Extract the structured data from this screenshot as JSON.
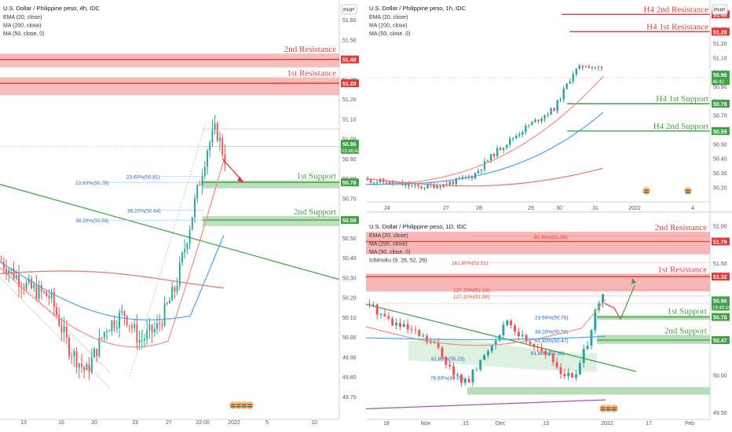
{
  "colors": {
    "resistance": "#e53935",
    "resistance_zone": "#f6a5a5",
    "support": "#43a047",
    "support_zone": "#a5d6a7",
    "up_candle": "#26a69a",
    "down_candle": "#ef5350",
    "ema": "#f28b82",
    "ma200": "#e57373",
    "ma50": "#42a5f5",
    "trendline": "#4caf50",
    "price_tag": "#43a047"
  },
  "chart_data": [
    {
      "id": "h4",
      "type": "candlestick",
      "title": "U.S. Dollar / Philippine peso, 4h, IDC",
      "indicators": [
        "EMA (20, close)",
        "MA (200, close)",
        "MA (50, close, 0)"
      ],
      "currency": "PHP",
      "ylim": [
        49.6,
        51.7
      ],
      "y_ticks": [
        "51.60",
        "51.50",
        "51.40",
        "51.30",
        "51.20",
        "51.10",
        "51.00",
        "50.90",
        "50.80",
        "50.70",
        "50.60",
        "50.50",
        "50.40",
        "50.30",
        "50.20",
        "50.10",
        "50.00",
        "49.90",
        "49.80",
        "49.70"
      ],
      "x_ticks": [
        "13",
        "16",
        "20",
        "23",
        "27",
        "22:00",
        "2022",
        "5",
        "10"
      ],
      "levels": [
        {
          "label": "2nd Resistance",
          "price_tag": "51.40",
          "kind": "resistance",
          "from": 51.36,
          "to": 51.43
        },
        {
          "label": "1st Resistance",
          "price_tag": "51.28",
          "kind": "resistance",
          "from": 51.22,
          "to": 51.31
        },
        {
          "label": "1st Support",
          "price_tag": "50.78",
          "kind": "support",
          "from": 50.75,
          "to": 50.79
        },
        {
          "label": "2nd Support",
          "price_tag": "50.59",
          "kind": "support",
          "from": 50.56,
          "to": 50.61
        }
      ],
      "fib_labels": [
        "23.60%(50.78)",
        "23.60%(50.81)",
        "38.20%(50.64)",
        "38.20%(50.59)"
      ],
      "last_price": "50.96",
      "countdown": "03:46:42"
    },
    {
      "id": "h1",
      "type": "candlestick",
      "title": "U.S. Dollar / Philippine peso, 1h, IDC",
      "indicators": [
        "EMA (20, close)",
        "MA (200, close)",
        "MA (50, close, 0)"
      ],
      "currency": "PHP",
      "ylim": [
        50.12,
        51.5
      ],
      "y_ticks": [
        "51.40",
        "51.30",
        "51.20",
        "51.10",
        "51.00",
        "50.90",
        "50.80",
        "50.70",
        "50.60",
        "50.50",
        "50.40",
        "50.30",
        "50.20"
      ],
      "x_ticks": [
        "24",
        "27",
        "28",
        "29",
        "30",
        "31",
        "2022",
        "4"
      ],
      "levels": [
        {
          "label": "H4 2nd Resistance",
          "price_tag": "51.40",
          "kind": "resistance"
        },
        {
          "label": "H4 1st Resistance",
          "price_tag": "51.28",
          "kind": "resistance"
        },
        {
          "label": "H4 1st Support",
          "price_tag": "50.78",
          "kind": "support"
        },
        {
          "label": "H4 2nd Support",
          "price_tag": "50.59",
          "kind": "support"
        }
      ],
      "last_price": "50.96",
      "countdown": "46:42"
    },
    {
      "id": "d1",
      "type": "candlestick",
      "title": "U.S. Dollar / Philippine peso, 1D, IDC",
      "indicators": [
        "EMA (20, close)",
        "MA (200, close)",
        "MA (50, close, 0)",
        "Ichimoku (9, 26, 52, 26)"
      ],
      "currency": "PHP",
      "ylim": [
        49.45,
        52.1
      ],
      "y_ticks": [
        "52.00",
        "51.50",
        "51.00",
        "50.50",
        "50.00",
        "49.50"
      ],
      "x_ticks": [
        "18",
        "Nov",
        "15",
        "Dec",
        "13",
        "2022",
        "17",
        "Feb"
      ],
      "levels": [
        {
          "label": "2nd Resistance",
          "price_tag": "51.79",
          "kind": "resistance",
          "from": 51.62,
          "to": 51.92
        },
        {
          "label": "1st Resistance",
          "price_tag": "51.32",
          "kind": "resistance",
          "from": 51.12,
          "to": 51.36
        },
        {
          "label": "1st Support",
          "price_tag": "50.78",
          "kind": "support",
          "from": 50.74,
          "to": 50.8
        },
        {
          "label": "2nd Support",
          "price_tag": "50.47",
          "kind": "support",
          "from": 50.42,
          "to": 50.54
        }
      ],
      "fib_labels": [
        "-61.80%(51.86)",
        "161.80%(51.51)",
        "127.20%(51.15)",
        "127.20%(51.06)",
        "23.60%(50.78)",
        "38.20%(50.59)",
        "61.80%(50.47)",
        "61.80%(50.23)",
        "61.80%(50.30)",
        "78.60%(49.97)"
      ],
      "last_price": "50.96",
      "countdown": "19:46:41"
    }
  ]
}
